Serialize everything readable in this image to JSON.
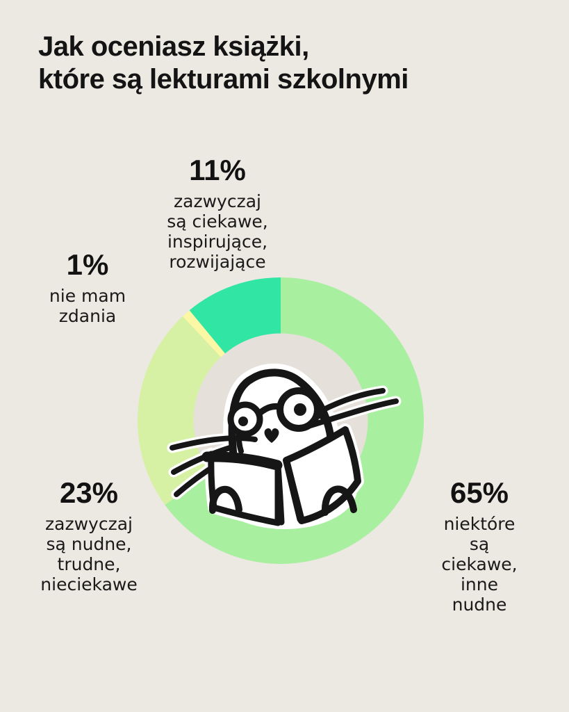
{
  "page": {
    "background": "#ECE8E2",
    "text_color": "#1A1A1A"
  },
  "title": {
    "line1": "Jak oceniasz książki,",
    "line2": "które są lekturami szkolnymi"
  },
  "chart_data": {
    "type": "pie",
    "variant": "donut",
    "title": "Jak oceniasz książki, które są lekturami szkolnymi",
    "start_angle_deg": 0,
    "direction": "clockwise",
    "outer_radius": 206,
    "inner_radius": 125,
    "hole_color": "#E5E0DA",
    "slices": [
      {
        "value_pct": 65,
        "label": "niektóre są ciekawe, inne nudne",
        "color": "#A9EFA0"
      },
      {
        "value_pct": 23,
        "label": "zazwyczaj są nudne, trudne, nieciekawe",
        "color": "#D7F1A4"
      },
      {
        "value_pct": 1,
        "label": "nie mam zdania",
        "color": "#FBF7A4"
      },
      {
        "value_pct": 11,
        "label": "zazwyczaj są ciekawe, inspirujące, rozwijające",
        "color": "#31E6A4"
      }
    ],
    "center_illustration": "cat-with-glasses-reading-book",
    "legend_position": "around-chart-callouts",
    "grid": false
  },
  "callouts": {
    "pct11": {
      "pct": "11%",
      "lines": [
        "zazwyczaj",
        "są ciekawe,",
        "inspirujące,",
        "rozwijające"
      ]
    },
    "pct1": {
      "pct": "1%",
      "lines": [
        "nie mam",
        "zdania"
      ]
    },
    "pct23": {
      "pct": "23%",
      "lines": [
        "zazwyczaj",
        "są nudne,",
        "trudne,",
        "nieciekawe"
      ]
    },
    "pct65": {
      "pct": "65%",
      "lines": [
        "niektóre",
        "są ciekawe,",
        "inne nudne"
      ]
    }
  }
}
